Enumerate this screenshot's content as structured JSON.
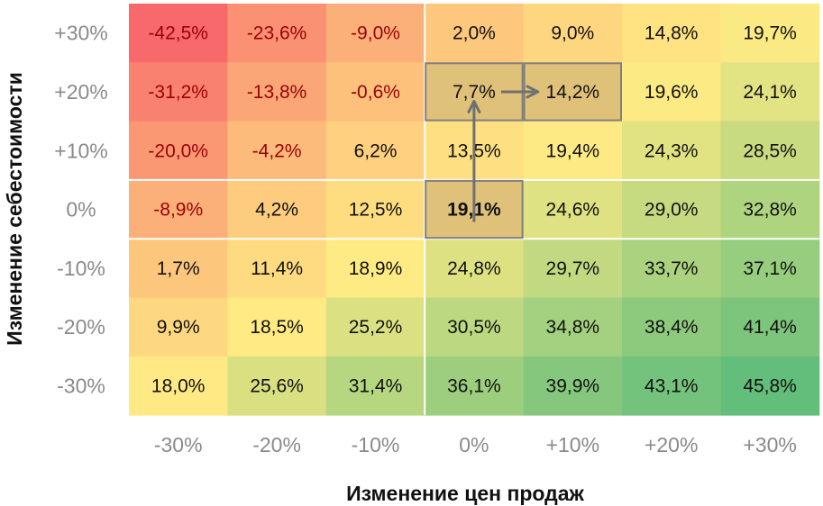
{
  "chart_data": {
    "type": "heatmap",
    "title": "",
    "xlabel": "Изменение цен продаж",
    "ylabel": "Изменение себестоимости",
    "x_ticks": [
      "-30%",
      "-20%",
      "-10%",
      "0%",
      "+10%",
      "+20%",
      "+30%"
    ],
    "y_ticks": [
      "+30%",
      "+20%",
      "+10%",
      "0%",
      "-10%",
      "-20%",
      "-30%"
    ],
    "cells": [
      [
        "-42,5%",
        "-23,6%",
        "-9,0%",
        "2,0%",
        "9,0%",
        "14,8%",
        "19,7%"
      ],
      [
        "-31,2%",
        "-13,8%",
        "-0,6%",
        "7,7%",
        "14,2%",
        "19,6%",
        "24,1%"
      ],
      [
        "-20,0%",
        "-4,2%",
        "6,2%",
        "13,5%",
        "19,4%",
        "24,3%",
        "28,5%"
      ],
      [
        "-8,9%",
        "4,2%",
        "12,5%",
        "19,1%",
        "24,6%",
        "29,0%",
        "32,8%"
      ],
      [
        "1,7%",
        "11,4%",
        "18,9%",
        "24,8%",
        "29,7%",
        "33,7%",
        "37,1%"
      ],
      [
        "9,9%",
        "18,5%",
        "25,2%",
        "30,5%",
        "34,8%",
        "38,4%",
        "41,4%"
      ],
      [
        "18,0%",
        "25,6%",
        "31,4%",
        "36,1%",
        "39,9%",
        "43,1%",
        "45,8%"
      ]
    ],
    "values": [
      [
        -42.5,
        -23.6,
        -9.0,
        2.0,
        9.0,
        14.8,
        19.7
      ],
      [
        -31.2,
        -13.8,
        -0.6,
        7.7,
        14.2,
        19.6,
        24.1
      ],
      [
        -20.0,
        -4.2,
        6.2,
        13.5,
        19.4,
        24.3,
        28.5
      ],
      [
        -8.9,
        4.2,
        12.5,
        19.1,
        24.6,
        29.0,
        32.8
      ],
      [
        1.7,
        11.4,
        18.9,
        24.8,
        29.7,
        33.7,
        37.1
      ],
      [
        9.9,
        18.5,
        25.2,
        30.5,
        34.8,
        38.4,
        41.4
      ],
      [
        18.0,
        25.6,
        31.4,
        36.1,
        39.9,
        43.1,
        45.8
      ]
    ],
    "color_scale": [
      "#f8696b",
      "#ffeb84",
      "#63be7b"
    ],
    "negative_text_color": "#9c0006",
    "highlight_fill": "#e0c17a",
    "highlight_border": "#808080",
    "highlighted_cells": [
      {
        "row": 3,
        "col": 3,
        "bold": true
      },
      {
        "row": 1,
        "col": 3,
        "bold": false
      },
      {
        "row": 1,
        "col": 4,
        "bold": false
      }
    ],
    "arrows": [
      {
        "from": {
          "row": 3,
          "col": 3
        },
        "to": {
          "row": 1,
          "col": 3
        }
      },
      {
        "from": {
          "row": 1,
          "col": 3
        },
        "to": {
          "row": 1,
          "col": 4
        }
      }
    ],
    "grid": true
  }
}
